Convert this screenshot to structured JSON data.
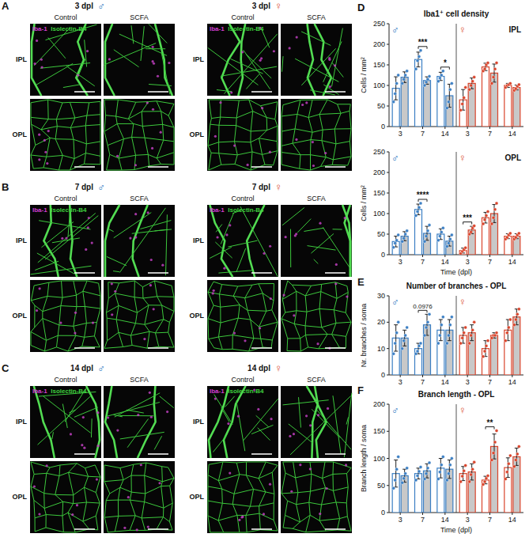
{
  "figure": {
    "stain_labels": [
      {
        "text": "Iba-1",
        "color": "#d23fd2"
      },
      {
        "text": "Isolectin-B4",
        "color": "#3fd23f"
      }
    ],
    "columns": [
      "Control",
      "SCFA"
    ],
    "rows": [
      "IPL",
      "OPL"
    ],
    "panels": [
      {
        "letter": "A",
        "groups": [
          {
            "time": "3 dpl",
            "sex": "♂",
            "color": "#3b7fc4"
          },
          {
            "time": "3 dpl",
            "sex": "♀",
            "color": "#d9442b"
          }
        ]
      },
      {
        "letter": "B",
        "groups": [
          {
            "time": "7 dpl",
            "sex": "♂",
            "color": "#3b7fc4"
          },
          {
            "time": "7 dpl",
            "sex": "♀",
            "color": "#d9442b"
          }
        ]
      },
      {
        "letter": "C",
        "groups": [
          {
            "time": "14 dpl",
            "sex": "♂",
            "color": "#3b7fc4"
          },
          {
            "time": "14 dpl",
            "sex": "♀",
            "color": "#d9442b"
          }
        ]
      }
    ]
  },
  "chart_data": [
    {
      "type": "bar",
      "panel_letter": "D",
      "title": "Iba1⁺ cell density",
      "subtitle": "IPL",
      "ylabel": "Cells / mm²",
      "categories": [
        "3",
        "7",
        "14",
        "3",
        "7",
        "14"
      ],
      "groups": [
        {
          "label": "♂",
          "color": "#3b7fc4"
        },
        {
          "label": "♀",
          "color": "#d9442b"
        }
      ],
      "ylim": [
        0,
        250
      ],
      "yticks": [
        0,
        50,
        100,
        150,
        200,
        250
      ],
      "series": [
        {
          "color": "#ffffff",
          "colors": [
            "#3b7fc4",
            "#3b7fc4",
            "#3b7fc4",
            "#d9442b",
            "#d9442b",
            "#d9442b"
          ],
          "values": [
            93,
            163,
            122,
            65,
            145,
            100
          ],
          "error": [
            28,
            18,
            10,
            25,
            9,
            5
          ],
          "points": [
            [
              60,
              80,
              105,
              125
            ],
            [
              140,
              160,
              170,
              185
            ],
            [
              110,
              118,
              125,
              135
            ],
            [
              40,
              55,
              70,
              95
            ],
            [
              135,
              140,
              150,
              155
            ],
            [
              95,
              100,
              102,
              105
            ]
          ]
        },
        {
          "color": "#c8c8c8",
          "colors": [
            "#3b7fc4",
            "#3b7fc4",
            "#3b7fc4",
            "#d9442b",
            "#d9442b",
            "#d9442b"
          ],
          "values": [
            120,
            112,
            75,
            105,
            130,
            95
          ],
          "error": [
            13,
            9,
            28,
            13,
            22,
            6
          ],
          "points": [
            [
              105,
              115,
              125,
              135
            ],
            [
              100,
              108,
              115,
              122
            ],
            [
              45,
              60,
              90,
              105
            ],
            [
              90,
              100,
              110,
              120
            ],
            [
              105,
              120,
              140,
              155
            ],
            [
              88,
              92,
              98,
              102
            ]
          ]
        }
      ],
      "annotations": [
        {
          "text": "***",
          "index": 1
        },
        {
          "text": "*",
          "index": 2
        }
      ]
    },
    {
      "type": "bar",
      "subtitle": "OPL",
      "ylabel": "Cells / mm²",
      "xlabel": "Time (dpl)",
      "categories": [
        "3",
        "7",
        "14",
        "3",
        "7",
        "14"
      ],
      "groups": [
        {
          "label": "♂",
          "color": "#3b7fc4"
        },
        {
          "label": "♀",
          "color": "#d9442b"
        }
      ],
      "ylim": [
        0,
        250
      ],
      "yticks": [
        0,
        50,
        100,
        150,
        200,
        250
      ],
      "series": [
        {
          "color": "#ffffff",
          "colors": [
            "#3b7fc4",
            "#3b7fc4",
            "#3b7fc4",
            "#d9442b",
            "#d9442b",
            "#d9442b"
          ],
          "values": [
            32,
            110,
            50,
            10,
            90,
            45
          ],
          "error": [
            13,
            13,
            13,
            6,
            13,
            6
          ],
          "points": [
            [
              18,
              28,
              35,
              48
            ],
            [
              95,
              105,
              115,
              125
            ],
            [
              35,
              45,
              55,
              65
            ],
            [
              3,
              8,
              12,
              17
            ],
            [
              75,
              85,
              95,
              105
            ],
            [
              38,
              42,
              48,
              52
            ]
          ]
        },
        {
          "color": "#c8c8c8",
          "colors": [
            "#3b7fc4",
            "#3b7fc4",
            "#3b7fc4",
            "#d9442b",
            "#d9442b",
            "#d9442b"
          ],
          "values": [
            45,
            52,
            33,
            60,
            100,
            45
          ],
          "error": [
            11,
            17,
            12,
            9,
            22,
            6
          ],
          "points": [
            [
              32,
              40,
              50,
              58
            ],
            [
              32,
              45,
              58,
              72
            ],
            [
              20,
              28,
              38,
              48
            ],
            [
              50,
              55,
              65,
              70
            ],
            [
              75,
              90,
              110,
              125
            ],
            [
              38,
              42,
              48,
              52
            ]
          ]
        }
      ],
      "annotations": [
        {
          "text": "****",
          "index": 1
        },
        {
          "text": "***",
          "index": 3
        }
      ]
    },
    {
      "type": "bar",
      "panel_letter": "E",
      "title": "Number of branches - OPL",
      "ylabel": "Nr. branches / soma",
      "categories": [
        "3",
        "7",
        "14",
        "3",
        "7",
        "14"
      ],
      "groups": [
        {
          "label": "♂",
          "color": "#3b7fc4"
        },
        {
          "label": "♀",
          "color": "#d9442b"
        }
      ],
      "ylim": [
        0,
        30
      ],
      "yticks": [
        0,
        10,
        20,
        30
      ],
      "series": [
        {
          "color": "#ffffff",
          "colors": [
            "#3b7fc4",
            "#3b7fc4",
            "#3b7fc4",
            "#d9442b",
            "#d9442b",
            "#d9442b"
          ],
          "values": [
            14,
            10,
            17,
            15,
            10,
            17
          ],
          "error": [
            5,
            2,
            4,
            3,
            3,
            4
          ],
          "points": [
            [
              8,
              12,
              16,
              20
            ],
            [
              8,
              9,
              11,
              12
            ],
            [
              12,
              15,
              19,
              22
            ],
            [
              12,
              14,
              16,
              18
            ],
            [
              7,
              9,
              11,
              13
            ],
            [
              13,
              16,
              18,
              21
            ]
          ]
        },
        {
          "color": "#c8c8c8",
          "colors": [
            "#3b7fc4",
            "#3b7fc4",
            "#3b7fc4",
            "#d9442b",
            "#d9442b",
            "#d9442b"
          ],
          "values": [
            14,
            19,
            17,
            16,
            15,
            22
          ],
          "error": [
            3,
            4,
            4,
            3,
            1,
            3
          ],
          "points": [
            [
              10,
              13,
              15,
              18
            ],
            [
              15,
              18,
              20,
              23
            ],
            [
              12,
              15,
              19,
              22
            ],
            [
              12,
              15,
              17,
              20
            ],
            [
              14,
              15,
              15,
              16
            ],
            [
              19,
              21,
              23,
              25
            ]
          ]
        }
      ],
      "annotations": [
        {
          "text": "0.0976",
          "index": 1
        }
      ]
    },
    {
      "type": "bar",
      "panel_letter": "F",
      "title": "Branch length - OPL",
      "ylabel": "Branch length / soma",
      "xlabel": "Time (dpl)",
      "categories": [
        "3",
        "7",
        "14",
        "3",
        "7",
        "14"
      ],
      "groups": [
        {
          "label": "♂",
          "color": "#3b7fc4"
        },
        {
          "label": "♀",
          "color": "#d9442b"
        }
      ],
      "ylim": [
        0,
        200
      ],
      "yticks": [
        0,
        50,
        100,
        150,
        200
      ],
      "series": [
        {
          "color": "#ffffff",
          "colors": [
            "#3b7fc4",
            "#3b7fc4",
            "#3b7fc4",
            "#d9442b",
            "#d9442b",
            "#d9442b"
          ],
          "values": [
            72,
            72,
            82,
            72,
            60,
            83
          ],
          "error": [
            25,
            10,
            18,
            13,
            7,
            18
          ],
          "points": [
            [
              45,
              60,
              80,
              103
            ],
            [
              60,
              68,
              76,
              84
            ],
            [
              62,
              75,
              88,
              103
            ],
            [
              57,
              67,
              77,
              87
            ],
            [
              52,
              57,
              63,
              68
            ],
            [
              62,
              75,
              90,
              105
            ]
          ]
        },
        {
          "color": "#c8c8c8",
          "colors": [
            "#3b7fc4",
            "#3b7fc4",
            "#3b7fc4",
            "#d9442b",
            "#d9442b",
            "#d9442b"
          ],
          "values": [
            68,
            77,
            80,
            75,
            122,
            103
          ],
          "error": [
            12,
            13,
            17,
            15,
            23,
            16
          ],
          "points": [
            [
              55,
              63,
              72,
              82
            ],
            [
              62,
              72,
              82,
              92
            ],
            [
              60,
              72,
              88,
              100
            ],
            [
              57,
              70,
              80,
              93
            ],
            [
              97,
              110,
              130,
              151
            ],
            [
              85,
              97,
              108,
              122
            ]
          ]
        }
      ],
      "annotations": [
        {
          "text": "**",
          "index": 4
        }
      ]
    }
  ]
}
